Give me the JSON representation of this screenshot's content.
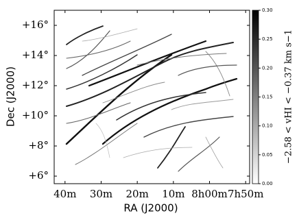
{
  "chart_data": {
    "type": "image",
    "xlabel": "RA (J2000)",
    "ylabel": "Dec (J2000)",
    "xlim": [
      43.0,
      -11.1
    ],
    "xticks": [
      {
        "value": 40,
        "label": "40m"
      },
      {
        "value": 30,
        "label": "30m"
      },
      {
        "value": 20,
        "label": "20m"
      },
      {
        "value": 10,
        "label": "10m"
      },
      {
        "value": 0,
        "label": "8h00m"
      },
      {
        "value": -10,
        "label": "7h50m"
      }
    ],
    "ylim": [
      5.5,
      17.0
    ],
    "yticks": [
      {
        "value": 6,
        "label": "+6°"
      },
      {
        "value": 8,
        "label": "+8°"
      },
      {
        "value": 10,
        "label": "+10°"
      },
      {
        "value": 12,
        "label": "+12°"
      },
      {
        "value": 14,
        "label": "+14°"
      },
      {
        "value": 16,
        "label": "+16°"
      }
    ],
    "colorbar_label": "−2.58 < vHI < −0.37 km s−1",
    "clim": [
      0,
      0.3
    ],
    "cticks": [
      {
        "value": 0,
        "label": "0.00"
      },
      0.05,
      {
        "value": 0.1,
        "label": "0.10"
      },
      0.15,
      {
        "value": 0.2,
        "label": "0.20"
      },
      0.25,
      {
        "value": 0.3,
        "label": "0.30"
      }
    ]
  }
}
